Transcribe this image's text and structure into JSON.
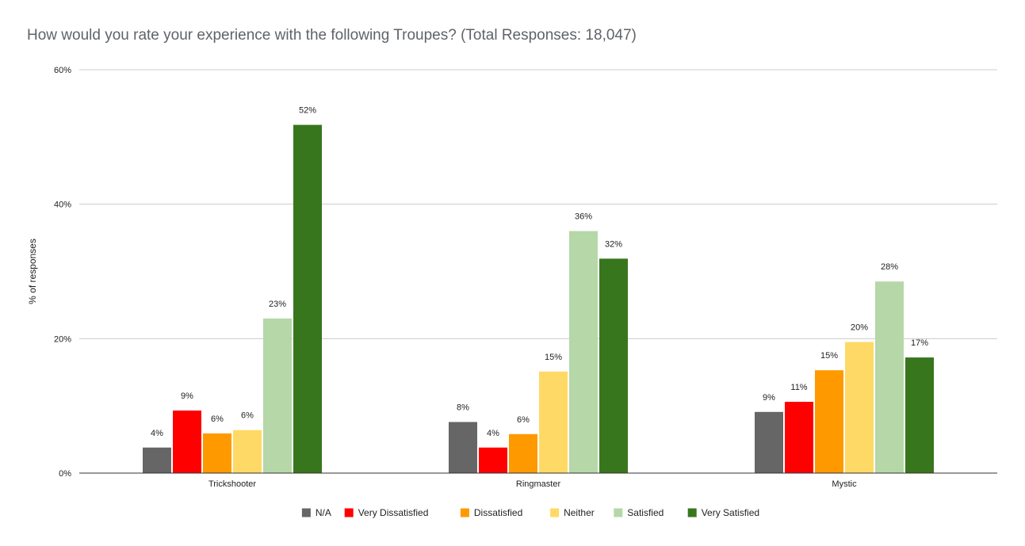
{
  "chart_data": {
    "type": "bar",
    "title": "How would you rate your experience with the following Troupes? (Total Responses: 18,047)",
    "ylabel": "% of responses",
    "xlabel": "",
    "ylim": [
      0,
      60
    ],
    "yticks": [
      0,
      20,
      40,
      60
    ],
    "ytick_labels": [
      "0%",
      "20%",
      "40%",
      "60%"
    ],
    "categories": [
      "Trickshooter",
      "Ringmaster",
      "Mystic"
    ],
    "grid": true,
    "legend_position": "bottom",
    "series": [
      {
        "name": "N/A",
        "color": "#666666",
        "values": [
          3.8,
          7.6,
          9.1
        ],
        "labels": [
          "4%",
          "8%",
          "9%"
        ]
      },
      {
        "name": "Very Dissatisfied",
        "color": "#ff0000",
        "values": [
          9.3,
          3.8,
          10.6
        ],
        "labels": [
          "9%",
          "4%",
          "11%"
        ]
      },
      {
        "name": "Dissatisfied",
        "color": "#ff9900",
        "values": [
          5.9,
          5.8,
          15.3
        ],
        "labels": [
          "6%",
          "6%",
          "15%"
        ]
      },
      {
        "name": "Neither",
        "color": "#ffd966",
        "values": [
          6.4,
          15.1,
          19.5
        ],
        "labels": [
          "6%",
          "15%",
          "20%"
        ]
      },
      {
        "name": "Satisfied",
        "color": "#b6d7a8",
        "values": [
          23.0,
          36.0,
          28.5
        ],
        "labels": [
          "23%",
          "36%",
          "28%"
        ]
      },
      {
        "name": "Very Satisfied",
        "color": "#38761d",
        "values": [
          51.8,
          31.9,
          17.2
        ],
        "labels": [
          "52%",
          "32%",
          "17%"
        ]
      }
    ]
  }
}
